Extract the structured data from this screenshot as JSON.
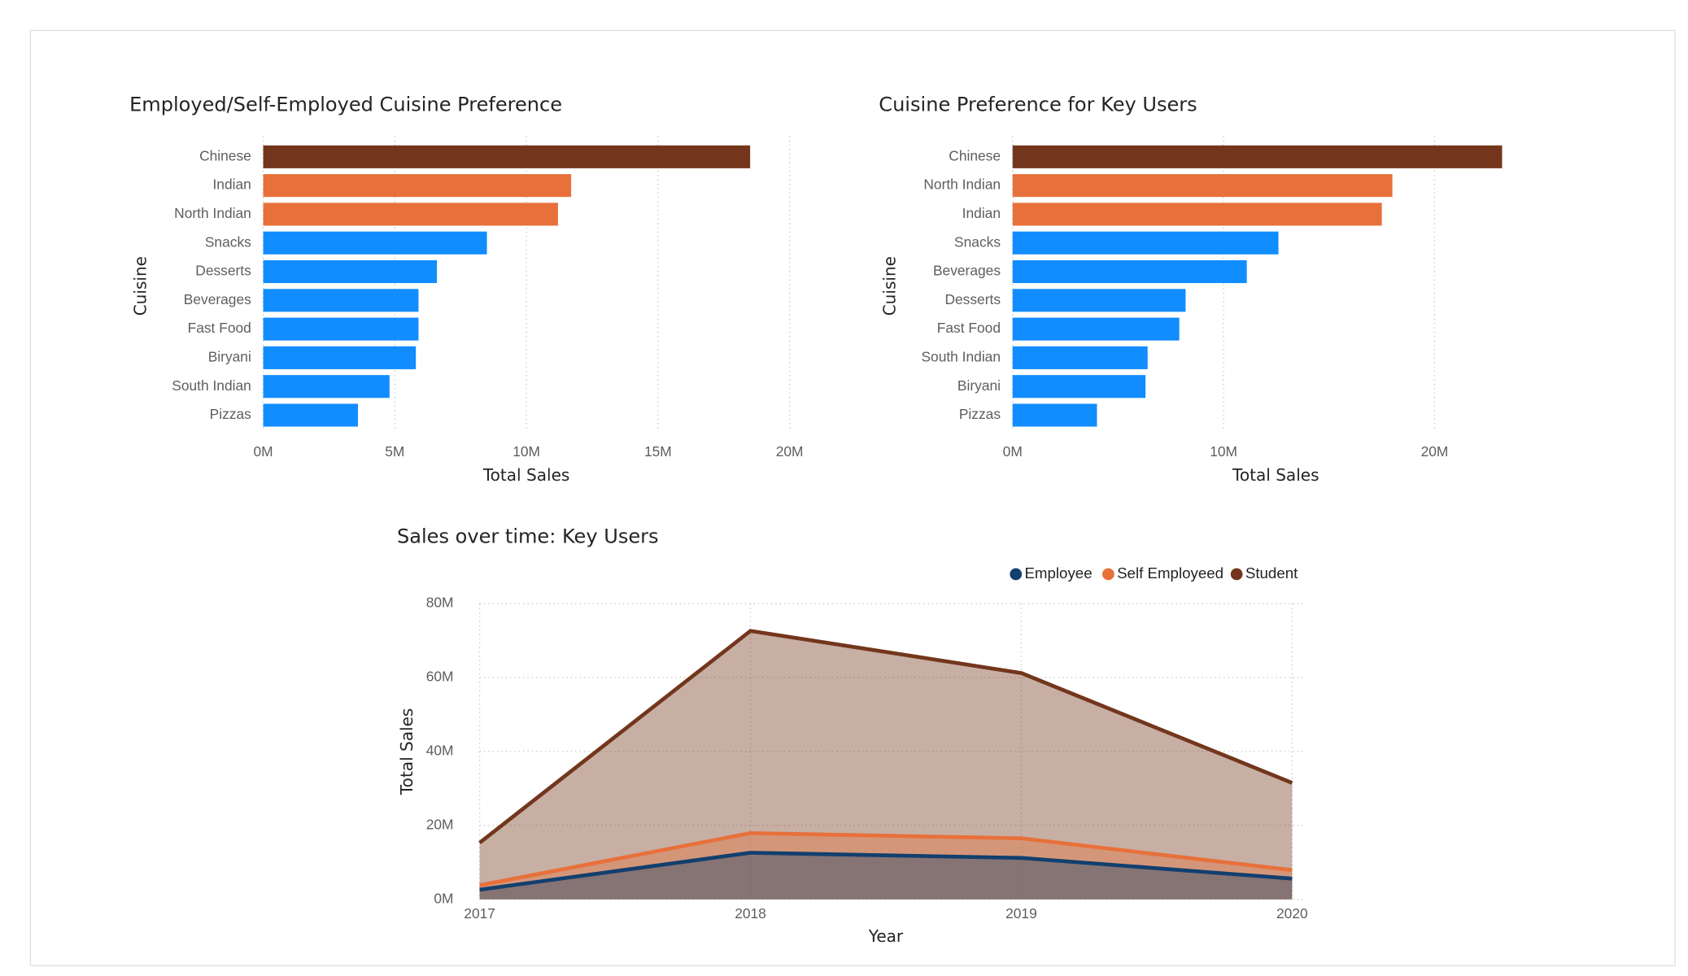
{
  "chart_data": [
    {
      "type": "hbar",
      "title": "Employed/Self-Employed Cuisine Preference",
      "xlabel": "Total Sales",
      "ylabel": "Cuisine",
      "categories": [
        "Chinese",
        "Indian",
        "North Indian",
        "Snacks",
        "Desserts",
        "Beverages",
        "Fast Food",
        "Biryani",
        "South Indian",
        "Pizzas"
      ],
      "values": [
        18.5,
        11.7,
        11.2,
        8.5,
        6.6,
        5.9,
        5.9,
        5.8,
        4.8,
        3.6
      ],
      "colors": [
        "#73361C",
        "#E8703A",
        "#E8703A",
        "#118DFF",
        "#118DFF",
        "#118DFF",
        "#118DFF",
        "#118DFF",
        "#118DFF",
        "#118DFF"
      ],
      "xlim": [
        0,
        20
      ],
      "xticks": [
        {
          "value": 0,
          "label": "0M"
        },
        {
          "value": 5,
          "label": "5M"
        },
        {
          "value": 10,
          "label": "10M"
        },
        {
          "value": 15,
          "label": "15M"
        },
        {
          "value": 20,
          "label": "20M"
        }
      ],
      "grid": true
    },
    {
      "type": "hbar",
      "title": "Cuisine Preference for Key Users",
      "xlabel": "Total Sales",
      "ylabel": "Cuisine",
      "categories": [
        "Chinese",
        "North Indian",
        "Indian",
        "Snacks",
        "Beverages",
        "Desserts",
        "Fast Food",
        "South Indian",
        "Biryani",
        "Pizzas"
      ],
      "values": [
        23.2,
        18.0,
        17.5,
        12.6,
        11.1,
        8.2,
        7.9,
        6.4,
        6.3,
        4.0
      ],
      "colors": [
        "#73361C",
        "#E8703A",
        "#E8703A",
        "#118DFF",
        "#118DFF",
        "#118DFF",
        "#118DFF",
        "#118DFF",
        "#118DFF",
        "#118DFF"
      ],
      "xlim": [
        0,
        24
      ],
      "xticks": [
        {
          "value": 0,
          "label": "0M"
        },
        {
          "value": 10,
          "label": "10M"
        },
        {
          "value": 20,
          "label": "20M"
        }
      ],
      "grid": true
    },
    {
      "type": "area",
      "title": "Sales over time: Key Users",
      "xlabel": "Year",
      "ylabel": "Total Sales",
      "categories": [
        "2017",
        "2018",
        "2019",
        "2020"
      ],
      "series": [
        {
          "name": "Employee",
          "color": "#123F6E",
          "values": [
            2.6,
            12.6,
            11.2,
            5.6
          ]
        },
        {
          "name": "Self Employeed",
          "color": "#E8703A",
          "values": [
            3.8,
            17.9,
            16.5,
            7.9
          ]
        },
        {
          "name": "Student",
          "color": "#73361C",
          "values": [
            15.3,
            72.6,
            61.2,
            31.5
          ]
        }
      ],
      "ylim": [
        0,
        80
      ],
      "yticks": [
        {
          "value": 0,
          "label": "0M"
        },
        {
          "value": 20,
          "label": "20M"
        },
        {
          "value": 40,
          "label": "40M"
        },
        {
          "value": 60,
          "label": "60M"
        },
        {
          "value": 80,
          "label": "80M"
        }
      ],
      "legend": "top-right",
      "grid": true
    }
  ]
}
